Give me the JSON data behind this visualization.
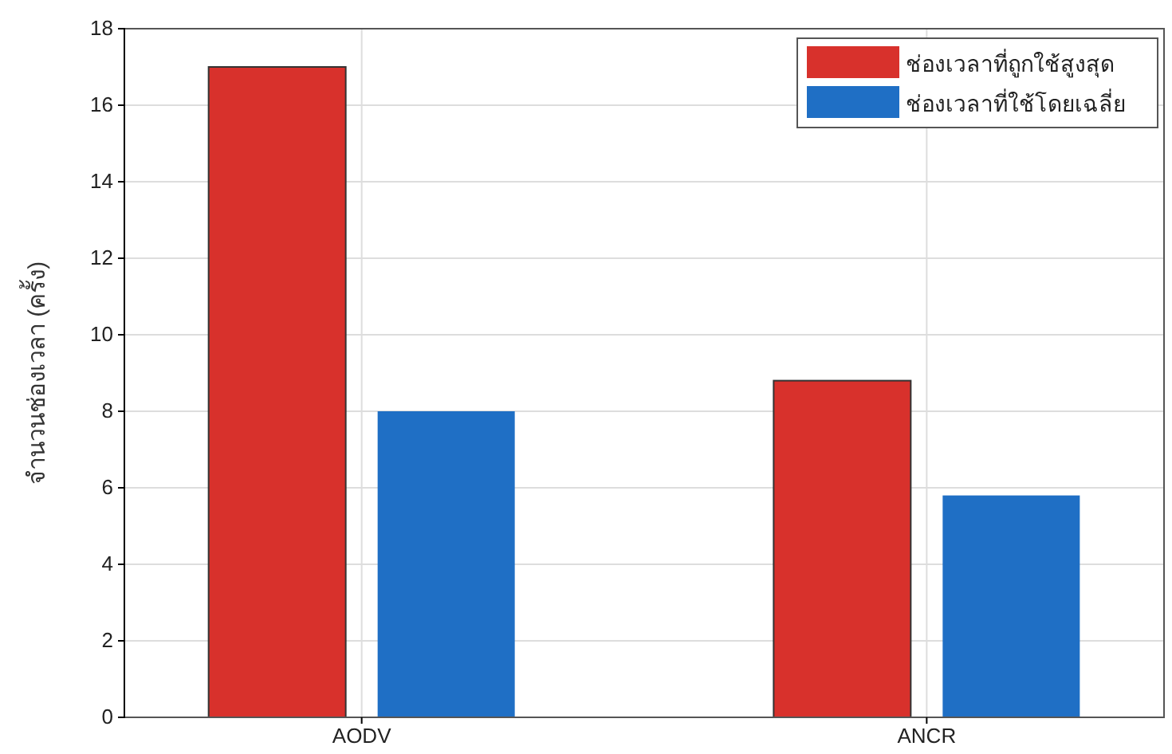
{
  "chart_data": {
    "type": "bar",
    "ylabel": "จำนวนช่องเวลา (ครั้ง)",
    "categories": [
      "AODV",
      "ANCR"
    ],
    "series": [
      {
        "name": "ช่องเวลาที่ถูกใช้สูงสุด",
        "color": "#d8312c",
        "values": [
          17,
          8.8
        ]
      },
      {
        "name": "ช่องเวลาที่ใช้โดยเฉลี่ย",
        "color": "#1f6fc5",
        "values": [
          8,
          5.8
        ]
      }
    ],
    "ylim": [
      0,
      18
    ],
    "yticks": [
      0,
      2,
      4,
      6,
      8,
      10,
      12,
      14,
      16,
      18
    ],
    "grid": true,
    "legend": "top right"
  }
}
